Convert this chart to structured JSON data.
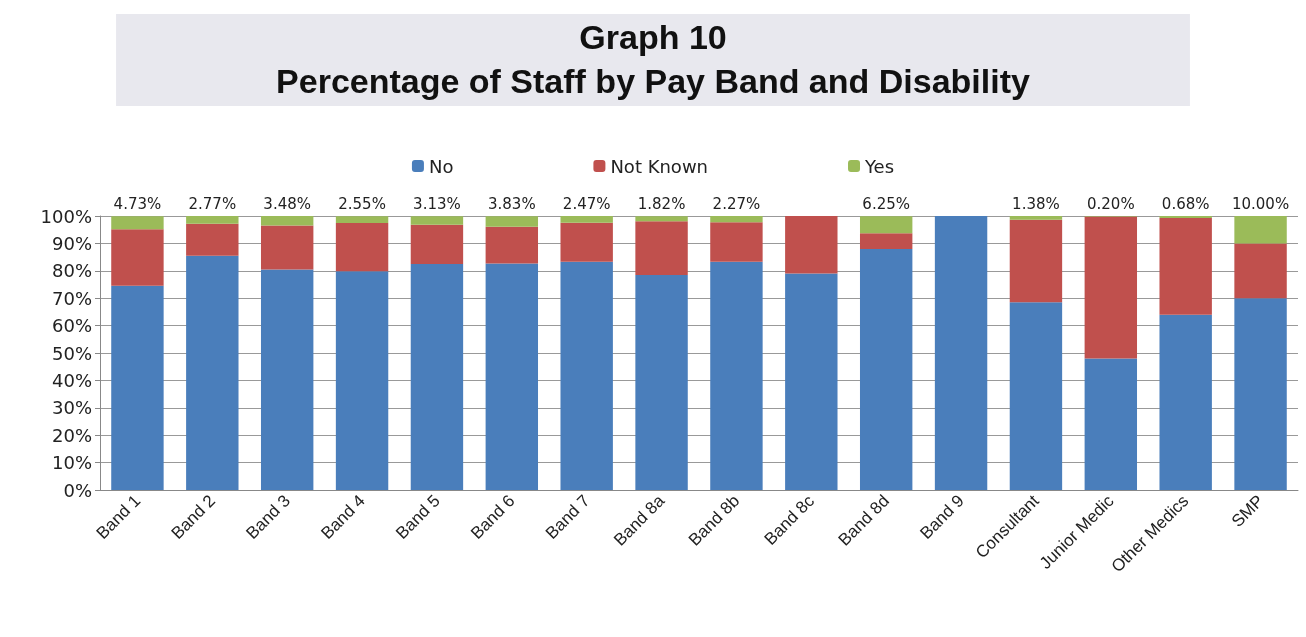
{
  "chart_data": {
    "type": "bar",
    "title": "Graph 10",
    "subtitle": "Percentage of Staff by Pay Band and Disability",
    "stacked": true,
    "categories": [
      "Band 1",
      "Band 2",
      "Band 3",
      "Band 4",
      "Band 5",
      "Band 6",
      "Band 7",
      "Band 8a",
      "Band 8b",
      "Band 8c",
      "Band 8d",
      "Band 9",
      "Consultant",
      "Junior Medic",
      "Other Medics",
      "SMP"
    ],
    "series": [
      {
        "name": "No",
        "color": "#4a7ebb",
        "values": [
          74.5,
          85.5,
          80.5,
          79.8,
          82.5,
          82.7,
          83.3,
          78.5,
          83.3,
          79,
          88,
          100,
          68.5,
          48,
          64,
          70
        ]
      },
      {
        "name": "Not Known",
        "color": "#c0504d",
        "values": [
          20.7,
          11.7,
          16.0,
          17.6,
          14.3,
          13.4,
          14.2,
          19.6,
          14.4,
          21,
          5.7,
          null,
          30.1,
          51.8,
          35.3,
          20
        ]
      },
      {
        "name": "Yes",
        "color": "#9bbb59",
        "values": [
          4.73,
          2.77,
          3.48,
          2.55,
          3.13,
          3.83,
          2.47,
          1.82,
          2.27,
          null,
          6.25,
          null,
          1.38,
          0.2,
          0.68,
          10
        ],
        "value_labels": [
          "4.73%",
          "2.77%",
          "3.48%",
          "2.55%",
          "3.13%",
          "3.83%",
          "2.47%",
          "1.82%",
          "2.27%",
          null,
          "6.25%",
          null,
          "1.38%",
          "0.20%",
          "0.68%",
          "10.00%"
        ]
      }
    ],
    "ylim": [
      0,
      100
    ],
    "yticks": [
      {
        "value": 0,
        "label": "0%"
      },
      {
        "value": 10,
        "label": "10%"
      },
      {
        "value": 20,
        "label": "20%"
      },
      {
        "value": 30,
        "label": "30%"
      },
      {
        "value": 40,
        "label": "40%"
      },
      {
        "value": 50,
        "label": "50%"
      },
      {
        "value": 60,
        "label": "60%"
      },
      {
        "value": 70,
        "label": "70%"
      },
      {
        "value": 80,
        "label": "80%"
      },
      {
        "value": 90,
        "label": "90%"
      },
      {
        "value": 100,
        "label": "100%"
      }
    ],
    "grid": "y",
    "legend": "top"
  }
}
